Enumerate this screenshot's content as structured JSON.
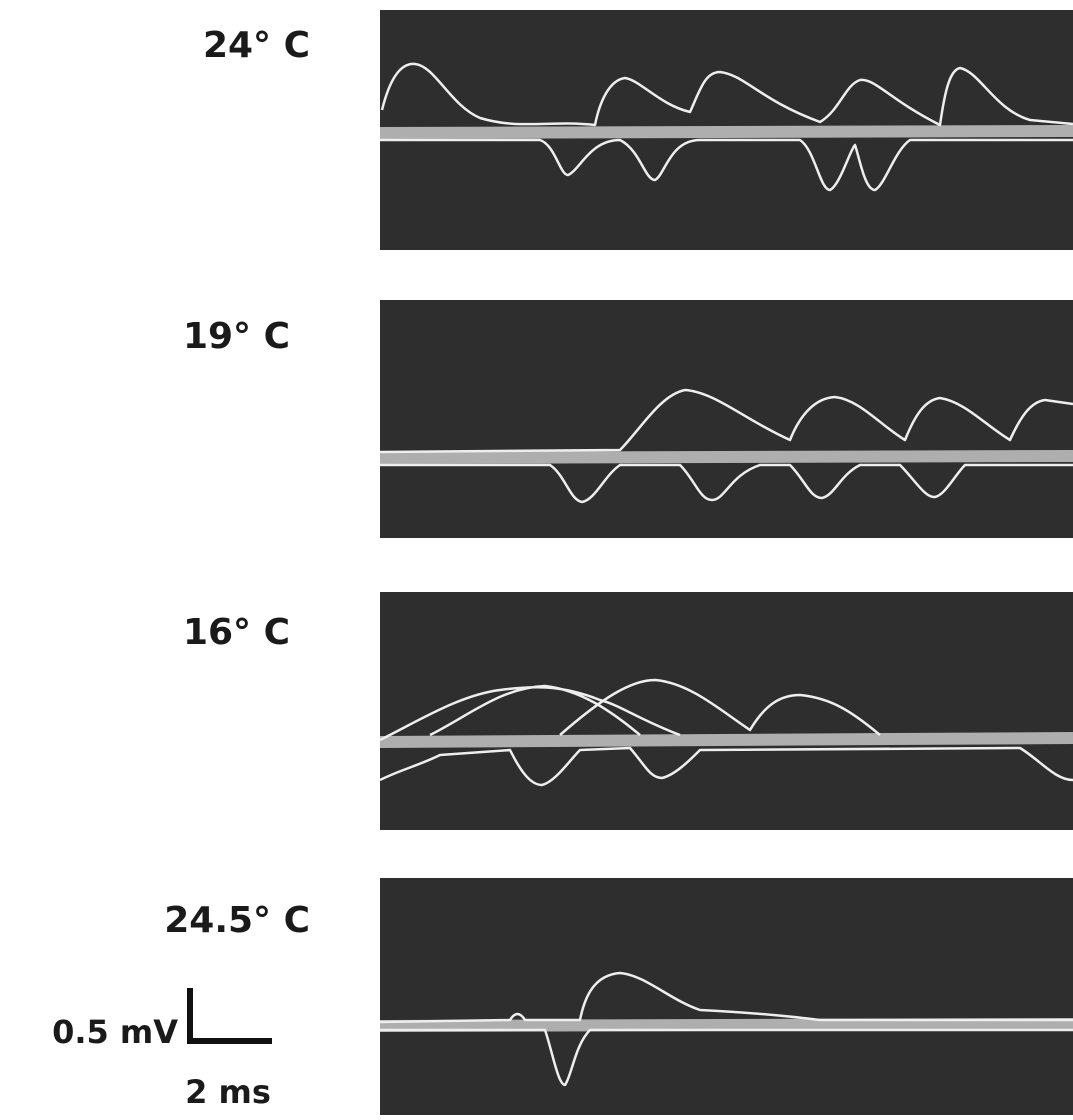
{
  "panels": [
    {
      "label": "24° C"
    },
    {
      "label": "19° C"
    },
    {
      "label": "16° C"
    },
    {
      "label": "24.5° C"
    }
  ],
  "scale_bar": {
    "voltage": "0.5 mV",
    "time": "2 ms"
  }
}
